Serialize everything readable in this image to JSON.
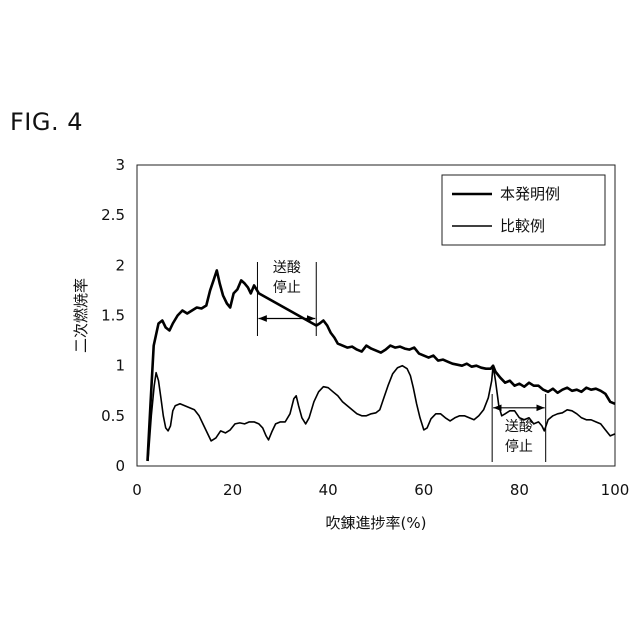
{
  "figure_label": "FIG. 4",
  "chart_data": {
    "type": "line",
    "title": "",
    "xlabel": "吹錬進捗率(%)",
    "ylabel": "二次燃焼率",
    "xlim": [
      0,
      100
    ],
    "ylim": [
      0,
      3
    ],
    "xticks": [
      "0",
      "20",
      "40",
      "60",
      "80",
      "100"
    ],
    "yticks": [
      "0",
      "0.5",
      "1",
      "1.5",
      "2",
      "2.5",
      "3"
    ],
    "grid": false,
    "legend_position": "top-right",
    "series": [
      {
        "name": "本発明例",
        "style": "thick",
        "points": [
          [
            2.2,
            0.05
          ],
          [
            2.8,
            0.6
          ],
          [
            3.5,
            1.2
          ],
          [
            4.5,
            1.42
          ],
          [
            5.3,
            1.45
          ],
          [
            6,
            1.38
          ],
          [
            6.8,
            1.35
          ],
          [
            7.5,
            1.42
          ],
          [
            8.5,
            1.5
          ],
          [
            9.5,
            1.55
          ],
          [
            10.5,
            1.52
          ],
          [
            11.5,
            1.55
          ],
          [
            12.5,
            1.58
          ],
          [
            13.5,
            1.57
          ],
          [
            14.5,
            1.6
          ],
          [
            15.3,
            1.75
          ],
          [
            16,
            1.85
          ],
          [
            16.7,
            1.95
          ],
          [
            17.3,
            1.82
          ],
          [
            18,
            1.7
          ],
          [
            18.8,
            1.62
          ],
          [
            19.5,
            1.58
          ],
          [
            20.2,
            1.72
          ],
          [
            21,
            1.76
          ],
          [
            21.8,
            1.85
          ],
          [
            22.5,
            1.82
          ],
          [
            23.2,
            1.78
          ],
          [
            23.8,
            1.72
          ],
          [
            24.5,
            1.8
          ],
          [
            25,
            1.76
          ],
          [
            25.5,
            1.72
          ],
          [
            37.5,
            1.4
          ],
          [
            38.2,
            1.42
          ],
          [
            39,
            1.45
          ],
          [
            39.8,
            1.4
          ],
          [
            40.5,
            1.33
          ],
          [
            41.3,
            1.28
          ],
          [
            42,
            1.22
          ],
          [
            43,
            1.2
          ],
          [
            44,
            1.18
          ],
          [
            45,
            1.19
          ],
          [
            46,
            1.16
          ],
          [
            47,
            1.14
          ],
          [
            48,
            1.2
          ],
          [
            49,
            1.17
          ],
          [
            50,
            1.15
          ],
          [
            51,
            1.13
          ],
          [
            52,
            1.16
          ],
          [
            53,
            1.2
          ],
          [
            54,
            1.18
          ],
          [
            55,
            1.19
          ],
          [
            56,
            1.17
          ],
          [
            57,
            1.16
          ],
          [
            58,
            1.18
          ],
          [
            59,
            1.12
          ],
          [
            60,
            1.1
          ],
          [
            61,
            1.08
          ],
          [
            62,
            1.1
          ],
          [
            63,
            1.05
          ],
          [
            64,
            1.06
          ],
          [
            65,
            1.04
          ],
          [
            66,
            1.02
          ],
          [
            67,
            1.01
          ],
          [
            68,
            1.0
          ],
          [
            69,
            1.02
          ],
          [
            70,
            0.99
          ],
          [
            71,
            1.0
          ],
          [
            72,
            0.98
          ],
          [
            73,
            0.97
          ],
          [
            74,
            0.97
          ],
          [
            74.5,
            1.0
          ],
          [
            75,
            0.94
          ],
          [
            76,
            0.88
          ],
          [
            77,
            0.83
          ],
          [
            78,
            0.85
          ],
          [
            79,
            0.8
          ],
          [
            80,
            0.82
          ],
          [
            81,
            0.79
          ],
          [
            82,
            0.83
          ],
          [
            83,
            0.8
          ],
          [
            84,
            0.8
          ],
          [
            85,
            0.76
          ],
          [
            86,
            0.74
          ],
          [
            87,
            0.77
          ],
          [
            88,
            0.73
          ],
          [
            89,
            0.76
          ],
          [
            90,
            0.78
          ],
          [
            91,
            0.75
          ],
          [
            92,
            0.76
          ],
          [
            93,
            0.74
          ],
          [
            94,
            0.78
          ],
          [
            95,
            0.76
          ],
          [
            96,
            0.77
          ],
          [
            97,
            0.75
          ],
          [
            98,
            0.72
          ],
          [
            99,
            0.64
          ],
          [
            100,
            0.62
          ]
        ]
      },
      {
        "name": "比較例",
        "style": "thin",
        "points": [
          [
            2.3,
            0.05
          ],
          [
            3,
            0.5
          ],
          [
            3.6,
            0.8
          ],
          [
            4,
            0.93
          ],
          [
            4.5,
            0.85
          ],
          [
            5,
            0.68
          ],
          [
            5.5,
            0.5
          ],
          [
            6,
            0.38
          ],
          [
            6.5,
            0.35
          ],
          [
            7,
            0.4
          ],
          [
            7.5,
            0.55
          ],
          [
            8,
            0.6
          ],
          [
            9,
            0.62
          ],
          [
            10,
            0.6
          ],
          [
            11,
            0.58
          ],
          [
            12,
            0.56
          ],
          [
            13,
            0.5
          ],
          [
            14,
            0.4
          ],
          [
            15,
            0.3
          ],
          [
            15.5,
            0.25
          ],
          [
            16.5,
            0.28
          ],
          [
            17.5,
            0.35
          ],
          [
            18.5,
            0.33
          ],
          [
            19.5,
            0.36
          ],
          [
            20.5,
            0.42
          ],
          [
            21.5,
            0.43
          ],
          [
            22.5,
            0.42
          ],
          [
            23.5,
            0.44
          ],
          [
            24.5,
            0.44
          ],
          [
            25.5,
            0.42
          ],
          [
            26.3,
            0.38
          ],
          [
            27,
            0.3
          ],
          [
            27.5,
            0.26
          ],
          [
            28.2,
            0.34
          ],
          [
            29,
            0.42
          ],
          [
            30,
            0.44
          ],
          [
            31,
            0.44
          ],
          [
            32,
            0.52
          ],
          [
            32.8,
            0.67
          ],
          [
            33.3,
            0.7
          ],
          [
            33.8,
            0.6
          ],
          [
            34.5,
            0.48
          ],
          [
            35.3,
            0.42
          ],
          [
            36,
            0.48
          ],
          [
            37,
            0.64
          ],
          [
            38,
            0.74
          ],
          [
            39,
            0.79
          ],
          [
            40,
            0.78
          ],
          [
            41,
            0.74
          ],
          [
            42,
            0.7
          ],
          [
            43,
            0.64
          ],
          [
            44,
            0.6
          ],
          [
            45,
            0.56
          ],
          [
            46,
            0.52
          ],
          [
            47,
            0.5
          ],
          [
            48,
            0.5
          ],
          [
            49,
            0.52
          ],
          [
            50,
            0.53
          ],
          [
            50.8,
            0.56
          ],
          [
            51.5,
            0.66
          ],
          [
            52.5,
            0.8
          ],
          [
            53.5,
            0.92
          ],
          [
            54.5,
            0.98
          ],
          [
            55.5,
            1.0
          ],
          [
            56.5,
            0.97
          ],
          [
            57.2,
            0.9
          ],
          [
            57.8,
            0.78
          ],
          [
            58.5,
            0.62
          ],
          [
            59.2,
            0.48
          ],
          [
            60,
            0.36
          ],
          [
            60.7,
            0.38
          ],
          [
            61.5,
            0.47
          ],
          [
            62.5,
            0.52
          ],
          [
            63.5,
            0.52
          ],
          [
            64.5,
            0.48
          ],
          [
            65.5,
            0.45
          ],
          [
            66.5,
            0.48
          ],
          [
            67.5,
            0.5
          ],
          [
            68.5,
            0.5
          ],
          [
            69.5,
            0.48
          ],
          [
            70.5,
            0.46
          ],
          [
            71.5,
            0.5
          ],
          [
            72.5,
            0.56
          ],
          [
            73.5,
            0.68
          ],
          [
            74.2,
            0.85
          ],
          [
            74.5,
            1.0
          ],
          [
            75,
            0.85
          ],
          [
            75.7,
            0.6
          ],
          [
            76.3,
            0.5
          ],
          [
            77,
            0.52
          ],
          [
            78,
            0.55
          ],
          [
            79,
            0.55
          ],
          [
            80,
            0.48
          ],
          [
            81,
            0.46
          ],
          [
            82,
            0.48
          ],
          [
            83,
            0.42
          ],
          [
            84,
            0.44
          ],
          [
            84.7,
            0.4
          ],
          [
            85.2,
            0.35
          ],
          [
            86,
            0.46
          ],
          [
            87,
            0.5
          ],
          [
            88,
            0.52
          ],
          [
            89,
            0.53
          ],
          [
            90,
            0.56
          ],
          [
            91,
            0.55
          ],
          [
            92,
            0.52
          ],
          [
            93,
            0.48
          ],
          [
            94,
            0.46
          ],
          [
            95,
            0.46
          ],
          [
            96,
            0.44
          ],
          [
            97,
            0.42
          ],
          [
            98,
            0.36
          ],
          [
            99,
            0.3
          ],
          [
            100,
            0.32
          ]
        ]
      }
    ],
    "legend": [
      "本発明例",
      "比較例"
    ],
    "annotations": [
      {
        "text_line1": "送酸",
        "text_line2": "停止",
        "x_start": 25.2,
        "x_end": 37.5,
        "y": 1.47
      },
      {
        "text_line1": "送酸",
        "text_line2": "停止",
        "x_start": 74.3,
        "x_end": 85.5,
        "y": 0.58
      }
    ]
  }
}
